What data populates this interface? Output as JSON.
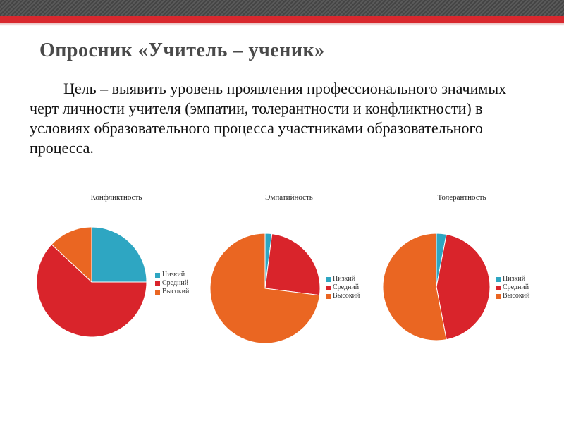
{
  "slide": {
    "title": "Опросник «Учитель – ученик»",
    "body": "Цель – выявить уровень проявления профессионального значимых черт личности учителя (эмпатии, толерантности и конфликтности) в условиях образовательного процесса участниками образовательного процесса."
  },
  "colors": {
    "low": "#2ea6c2",
    "mid": "#d9242b",
    "high": "#ea6622"
  },
  "chart_data": [
    {
      "type": "pie",
      "title": "Конфликтность",
      "categories": [
        "Низкий",
        "Средний",
        "Высокий"
      ],
      "values": [
        25,
        62,
        13
      ],
      "legend": "right"
    },
    {
      "type": "pie",
      "title": "Эмпатийность",
      "categories": [
        "Низкий",
        "Средний",
        "Высокий"
      ],
      "values": [
        2,
        25,
        73
      ],
      "legend": "right"
    },
    {
      "type": "pie",
      "title": "Толерантность",
      "categories": [
        "Низкий",
        "Средний",
        "Высокий"
      ],
      "values": [
        3,
        44,
        53
      ],
      "legend": "right"
    }
  ]
}
